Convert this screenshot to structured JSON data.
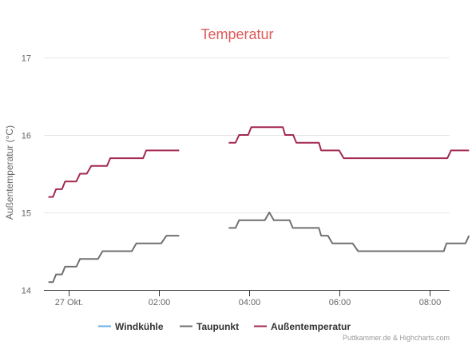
{
  "chart_data": {
    "type": "line",
    "title": "Temperatur",
    "ylabel": "Außentemperatur (°C)",
    "xlabel": "",
    "ylim": [
      14,
      17
    ],
    "y_ticks": [
      "14",
      "15",
      "16",
      "17"
    ],
    "xlim": [
      0.45,
      9.45
    ],
    "x_ticks": [
      {
        "x": 1,
        "label": "27 Okt."
      },
      {
        "x": 3,
        "label": "02:00"
      },
      {
        "x": 5,
        "label": "04:00"
      },
      {
        "x": 7,
        "label": "06:00"
      },
      {
        "x": 9,
        "label": "08:00"
      }
    ],
    "grid": true,
    "legend_position": "bottom",
    "credits": "Puttkammer.de & Highcharts.com",
    "series": [
      {
        "name": "Windkühle",
        "color": "#6aaee8",
        "segments": []
      },
      {
        "name": "Taupunkt",
        "color": "#707070",
        "segments": [
          [
            [
              0.55,
              14.1
            ],
            [
              0.65,
              14.1
            ],
            [
              0.72,
              14.2
            ],
            [
              0.85,
              14.2
            ],
            [
              0.92,
              14.3
            ],
            [
              1.17,
              14.3
            ],
            [
              1.25,
              14.4
            ],
            [
              1.65,
              14.4
            ],
            [
              1.75,
              14.5
            ],
            [
              2.4,
              14.5
            ],
            [
              2.5,
              14.6
            ],
            [
              3.05,
              14.6
            ],
            [
              3.17,
              14.7
            ],
            [
              3.45,
              14.7
            ]
          ],
          [
            [
              4.55,
              14.8
            ],
            [
              4.7,
              14.8
            ],
            [
              4.78,
              14.9
            ],
            [
              5.35,
              14.9
            ],
            [
              5.45,
              15.0
            ],
            [
              5.55,
              14.9
            ],
            [
              5.9,
              14.9
            ],
            [
              5.97,
              14.8
            ],
            [
              6.55,
              14.8
            ],
            [
              6.6,
              14.7
            ],
            [
              6.75,
              14.7
            ],
            [
              6.85,
              14.6
            ],
            [
              7.3,
              14.6
            ],
            [
              7.42,
              14.5
            ],
            [
              9.32,
              14.5
            ],
            [
              9.38,
              14.6
            ],
            [
              9.8,
              14.6
            ],
            [
              9.88,
              14.7
            ]
          ]
        ]
      },
      {
        "name": "Außentemperatur",
        "color": "#a3294f",
        "segments": [
          [
            [
              0.55,
              15.2
            ],
            [
              0.65,
              15.2
            ],
            [
              0.72,
              15.3
            ],
            [
              0.85,
              15.3
            ],
            [
              0.92,
              15.4
            ],
            [
              1.17,
              15.4
            ],
            [
              1.25,
              15.5
            ],
            [
              1.4,
              15.5
            ],
            [
              1.5,
              15.6
            ],
            [
              1.85,
              15.6
            ],
            [
              1.92,
              15.7
            ],
            [
              2.65,
              15.7
            ],
            [
              2.72,
              15.8
            ],
            [
              3.45,
              15.8
            ]
          ],
          [
            [
              4.55,
              15.9
            ],
            [
              4.7,
              15.9
            ],
            [
              4.78,
              16.0
            ],
            [
              4.98,
              16.0
            ],
            [
              5.05,
              16.1
            ],
            [
              5.75,
              16.1
            ],
            [
              5.8,
              16.0
            ],
            [
              5.98,
              16.0
            ],
            [
              6.05,
              15.9
            ],
            [
              6.55,
              15.9
            ],
            [
              6.6,
              15.8
            ],
            [
              7.0,
              15.8
            ],
            [
              7.1,
              15.7
            ],
            [
              9.4,
              15.7
            ],
            [
              9.48,
              15.8
            ],
            [
              9.88,
              15.8
            ]
          ]
        ]
      }
    ]
  }
}
